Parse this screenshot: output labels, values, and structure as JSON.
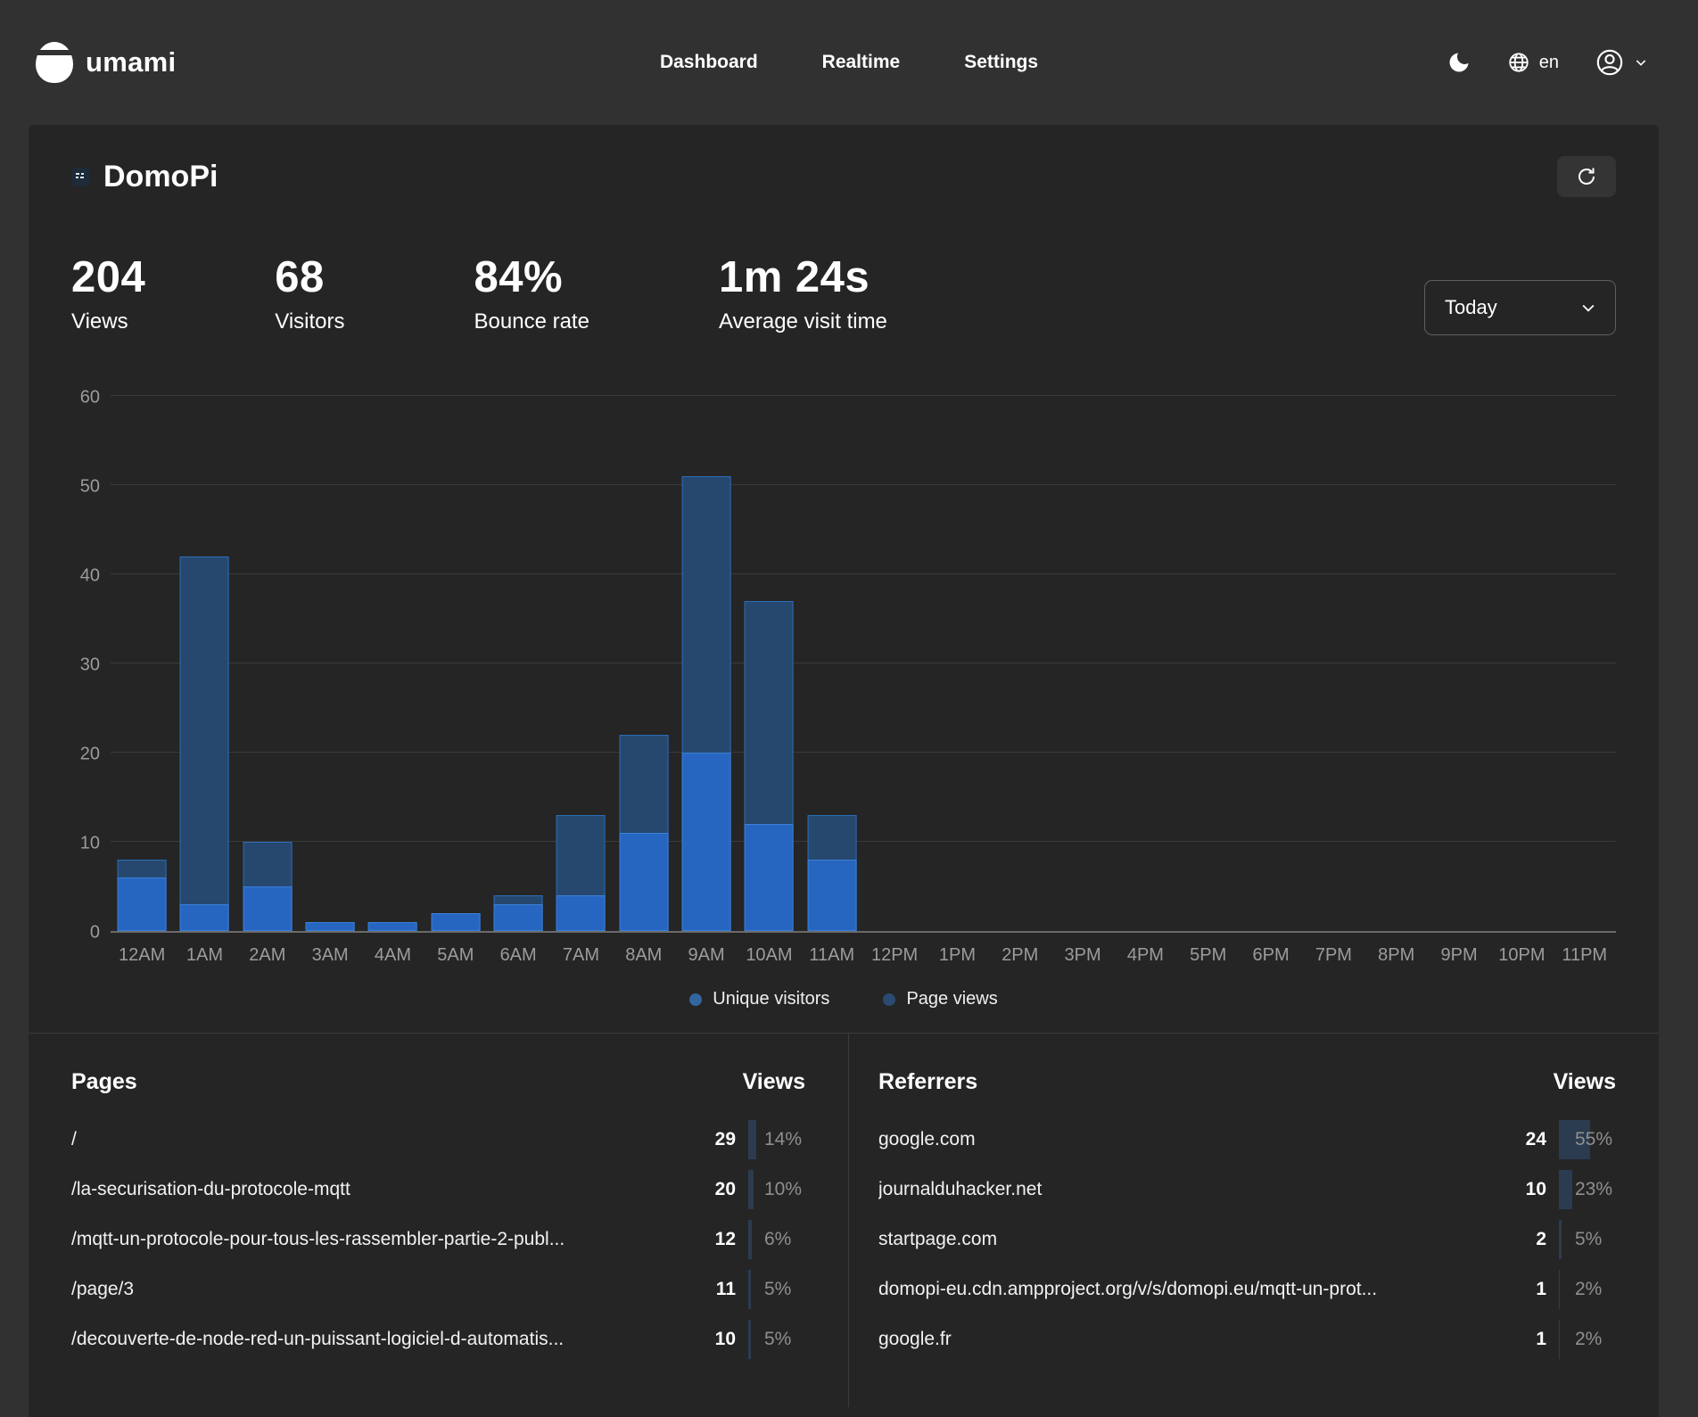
{
  "header": {
    "brand": "umami",
    "nav": [
      {
        "label": "Dashboard"
      },
      {
        "label": "Realtime"
      },
      {
        "label": "Settings"
      }
    ],
    "language": "en"
  },
  "website": {
    "name": "DomoPi"
  },
  "controls": {
    "date_range": "Today"
  },
  "metrics": [
    {
      "value": "204",
      "label": "Views"
    },
    {
      "value": "68",
      "label": "Visitors"
    },
    {
      "value": "84%",
      "label": "Bounce rate"
    },
    {
      "value": "1m 24s",
      "label": "Average visit time"
    }
  ],
  "chart_data": {
    "type": "bar",
    "title": "",
    "categories": [
      "12AM",
      "1AM",
      "2AM",
      "3AM",
      "4AM",
      "5AM",
      "6AM",
      "7AM",
      "8AM",
      "9AM",
      "10AM",
      "11AM",
      "12PM",
      "1PM",
      "2PM",
      "3PM",
      "4PM",
      "5PM",
      "6PM",
      "7PM",
      "8PM",
      "9PM",
      "10PM",
      "11PM"
    ],
    "series": [
      {
        "name": "Unique visitors",
        "fill": "#2766c0",
        "border": "#3b80d9",
        "dot": "#33659e",
        "values": [
          6,
          3,
          5,
          1,
          1,
          2,
          3,
          4,
          11,
          20,
          12,
          8,
          0,
          0,
          0,
          0,
          0,
          0,
          0,
          0,
          0,
          0,
          0,
          0
        ]
      },
      {
        "name": "Page views",
        "fill": "#26486e",
        "border": "#2b6cb8",
        "dot": "#2b4a71",
        "values": [
          8,
          42,
          10,
          1,
          1,
          2,
          4,
          13,
          22,
          51,
          37,
          13,
          0,
          0,
          0,
          0,
          0,
          0,
          0,
          0,
          0,
          0,
          0,
          0
        ]
      }
    ],
    "ylim": [
      0,
      60
    ],
    "yticks": [
      0,
      10,
      20,
      30,
      40,
      50,
      60
    ],
    "grid": true,
    "legend_position": "bottom"
  },
  "pages_table": {
    "title": "Pages",
    "views_label": "Views",
    "rows": [
      {
        "name": "/",
        "views": 29,
        "pct": 14
      },
      {
        "name": "/la-securisation-du-protocole-mqtt",
        "views": 20,
        "pct": 10
      },
      {
        "name": "/mqtt-un-protocole-pour-tous-les-rassembler-partie-2-publ...",
        "views": 12,
        "pct": 6
      },
      {
        "name": "/page/3",
        "views": 11,
        "pct": 5
      },
      {
        "name": "/decouverte-de-node-red-un-puissant-logiciel-d-automatis...",
        "views": 10,
        "pct": 5
      }
    ]
  },
  "referrers_table": {
    "title": "Referrers",
    "views_label": "Views",
    "rows": [
      {
        "name": "google.com",
        "views": 24,
        "pct": 55
      },
      {
        "name": "journalduhacker.net",
        "views": 10,
        "pct": 23
      },
      {
        "name": "startpage.com",
        "views": 2,
        "pct": 5
      },
      {
        "name": "domopi-eu.cdn.ampproject.org/v/s/domopi.eu/mqtt-un-prot...",
        "views": 1,
        "pct": 2
      },
      {
        "name": "google.fr",
        "views": 1,
        "pct": 2
      }
    ]
  },
  "colors": {
    "page_bg": "#313131",
    "panel_bg": "#252525",
    "grid_line": "#3a3a3a",
    "axis_line": "#6a6a6a",
    "pct_bar": "#2b3c50",
    "muted_text": "#9c9c9c"
  }
}
